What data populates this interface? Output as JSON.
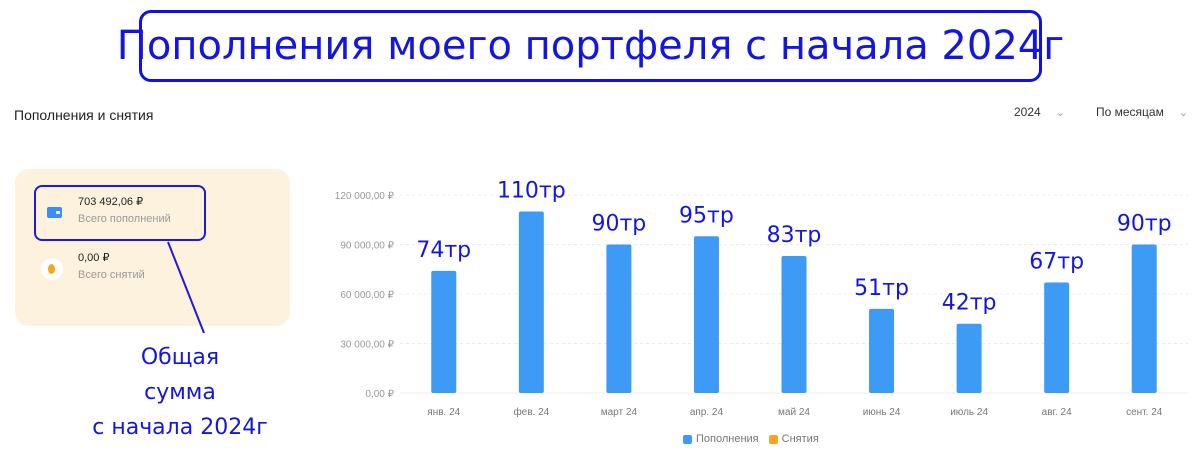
{
  "banner": {
    "title": "Пополнения моего портфеля с начала 2024г"
  },
  "header": {
    "section_title": "Пополнения и снятия",
    "year_select": "2024",
    "period_select": "По месяцам"
  },
  "summary": {
    "deposits": {
      "amount": "703 492,06 ₽",
      "label": "Всего пополнений",
      "icon": "wallet-icon"
    },
    "withdrawals": {
      "amount": "0,00 ₽",
      "label": "Всего снятий",
      "icon": "coin-icon"
    }
  },
  "annotation": {
    "lines": [
      "Общая",
      "сумма",
      "с начала 2024г"
    ]
  },
  "legend": [
    {
      "label": "Пополнения",
      "color": "#3d9af5"
    },
    {
      "label": "Снятия",
      "color": "#f7a623"
    }
  ],
  "chart_data": {
    "type": "bar",
    "title": "",
    "xlabel": "",
    "ylabel": "",
    "categories": [
      "янв. 24",
      "фев. 24",
      "март 24",
      "апр. 24",
      "май 24",
      "июнь 24",
      "июль 24",
      "авг. 24",
      "сент. 24"
    ],
    "series": [
      {
        "name": "Пополнения",
        "color": "#3d9af5",
        "values": [
          74000,
          110000,
          90000,
          95000,
          83000,
          51000,
          42000,
          67000,
          90000
        ]
      },
      {
        "name": "Снятия",
        "color": "#f7a623",
        "values": [
          0,
          0,
          0,
          0,
          0,
          0,
          0,
          0,
          0
        ]
      }
    ],
    "bar_annotations": [
      "74тр",
      "110тр",
      "90тр",
      "95тр",
      "83тр",
      "51тр",
      "42тр",
      "67тр",
      "90тр"
    ],
    "yticks": [
      0,
      30000,
      60000,
      90000,
      120000
    ],
    "ytick_labels": [
      "0,00 ₽",
      "30 000,00 ₽",
      "60 000,00 ₽",
      "90 000,00 ₽",
      "120 000,00 ₽"
    ],
    "ylim": [
      0,
      120000
    ],
    "grid": true,
    "legend_position": "bottom"
  }
}
